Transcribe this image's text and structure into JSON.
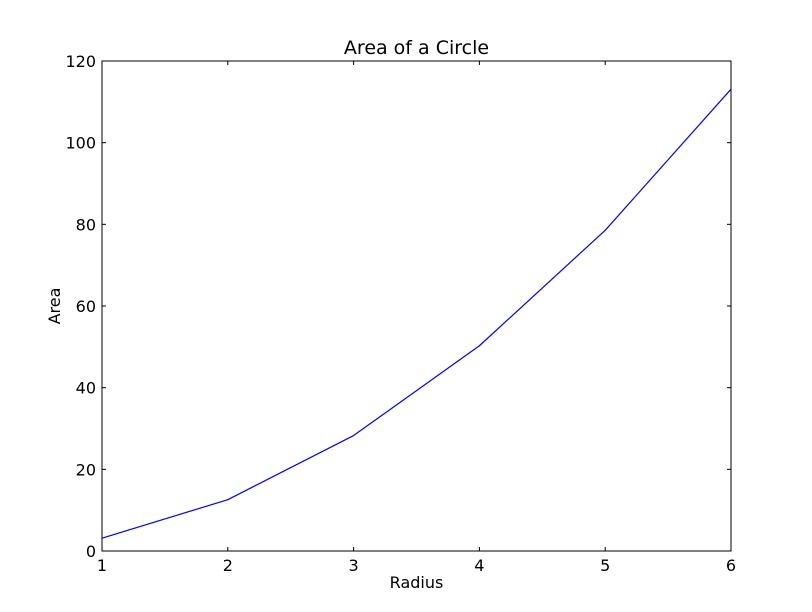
{
  "chart_data": {
    "type": "line",
    "title": "Area of a Circle",
    "xlabel": "Radius",
    "ylabel": "Area",
    "x": [
      1,
      2,
      3,
      4,
      5,
      6
    ],
    "series": [
      {
        "values": [
          3.14159,
          12.56637,
          28.27433,
          50.26548,
          78.53982,
          113.09734
        ],
        "color": "#0000ff"
      }
    ],
    "xlim": [
      1,
      6
    ],
    "ylim": [
      0,
      120
    ],
    "xticks": [
      1,
      2,
      3,
      4,
      5,
      6
    ],
    "yticks": [
      0,
      20,
      40,
      60,
      80,
      100,
      120
    ],
    "grid": false,
    "legend": "none"
  }
}
